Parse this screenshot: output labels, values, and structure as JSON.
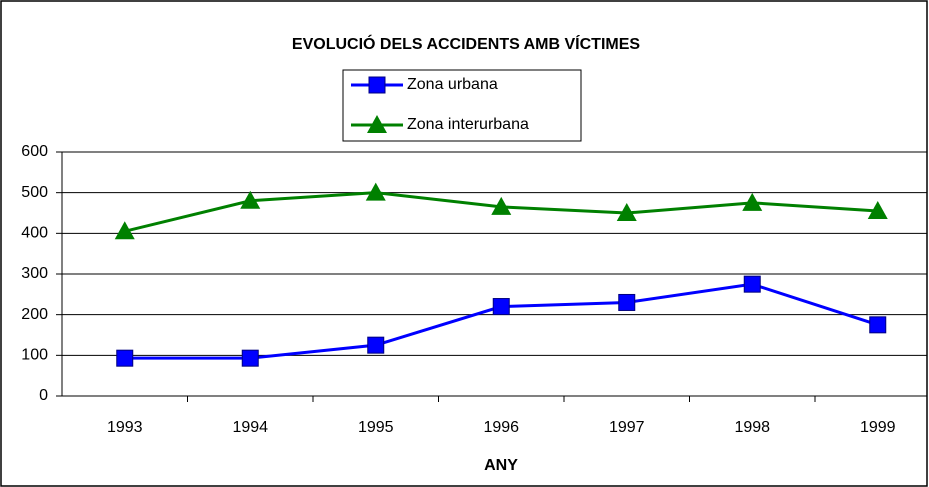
{
  "chart_data": {
    "type": "line",
    "title": "EVOLUCIÓ DELS ACCIDENTS AMB VÍCTIMES",
    "x_label": "ANY",
    "categories": [
      "1993",
      "1994",
      "1995",
      "1996",
      "1997",
      "1998",
      "1999"
    ],
    "series": [
      {
        "name": "Zona urbana",
        "color": "#0000ff",
        "marker": "square",
        "values": [
          93,
          93,
          125,
          220,
          230,
          275,
          175
        ]
      },
      {
        "name": "Zona interurbana",
        "color": "#008000",
        "marker": "triangle",
        "values": [
          405,
          480,
          500,
          465,
          450,
          475,
          455
        ]
      }
    ],
    "ylim": [
      0,
      600
    ],
    "yticks": [
      0,
      100,
      200,
      300,
      400,
      500,
      600
    ],
    "grid": true,
    "legend": "top"
  }
}
